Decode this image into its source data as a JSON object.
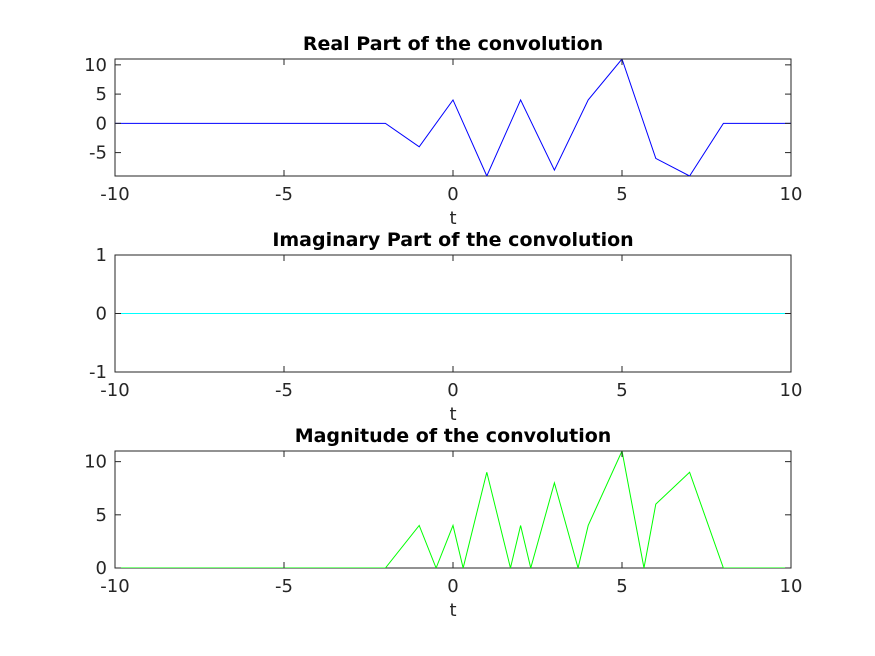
{
  "chart_data": [
    {
      "type": "line",
      "title": "Real Part of the convolution",
      "xlabel": "t",
      "ylabel": "",
      "xlim": [
        -10,
        10
      ],
      "ylim": [
        -9,
        11
      ],
      "xticks": [
        -10,
        -5,
        0,
        5,
        10
      ],
      "yticks": [
        -5,
        0,
        5,
        10
      ],
      "grid": false,
      "color": "#0000ff",
      "series": [
        {
          "x": [
            -10,
            -9,
            -8,
            -7,
            -6,
            -5,
            -4,
            -3,
            -2,
            -1,
            0,
            1,
            2,
            3,
            4,
            5,
            6,
            7,
            8,
            9,
            10
          ],
          "y": [
            0,
            0,
            0,
            0,
            0,
            0,
            0,
            0,
            0,
            -4,
            4,
            -9,
            4,
            -8,
            4,
            11,
            -6,
            -9,
            0,
            0,
            0
          ]
        }
      ]
    },
    {
      "type": "line",
      "title": "Imaginary Part of the convolution",
      "xlabel": "t",
      "ylabel": "",
      "xlim": [
        -10,
        10
      ],
      "ylim": [
        -1,
        1
      ],
      "xticks": [
        -10,
        -5,
        0,
        5,
        10
      ],
      "yticks": [
        -1,
        0,
        1
      ],
      "grid": false,
      "color": "#00ffff",
      "series": [
        {
          "x": [
            -10,
            10
          ],
          "y": [
            0,
            0
          ]
        }
      ]
    },
    {
      "type": "line",
      "title": "Magnitude of the convolution",
      "xlabel": "t",
      "ylabel": "",
      "xlim": [
        -10,
        10
      ],
      "ylim": [
        0,
        11
      ],
      "xticks": [
        -10,
        -5,
        0,
        5,
        10
      ],
      "yticks": [
        0,
        5,
        10
      ],
      "grid": false,
      "color": "#00ff00",
      "series": [
        {
          "x": [
            -10,
            -9,
            -8,
            -7,
            -6,
            -5,
            -4,
            -3,
            -2,
            -1,
            -0.5,
            0,
            0.3,
            1,
            1.7,
            2,
            2.3,
            3,
            3.7,
            4,
            5,
            5.65,
            6,
            7,
            8,
            9,
            10
          ],
          "y": [
            0,
            0,
            0,
            0,
            0,
            0,
            0,
            0,
            0,
            4,
            0,
            4,
            0,
            9,
            0,
            4,
            0,
            8,
            0,
            4,
            11,
            0,
            6,
            9,
            0,
            0,
            0
          ]
        }
      ]
    }
  ]
}
